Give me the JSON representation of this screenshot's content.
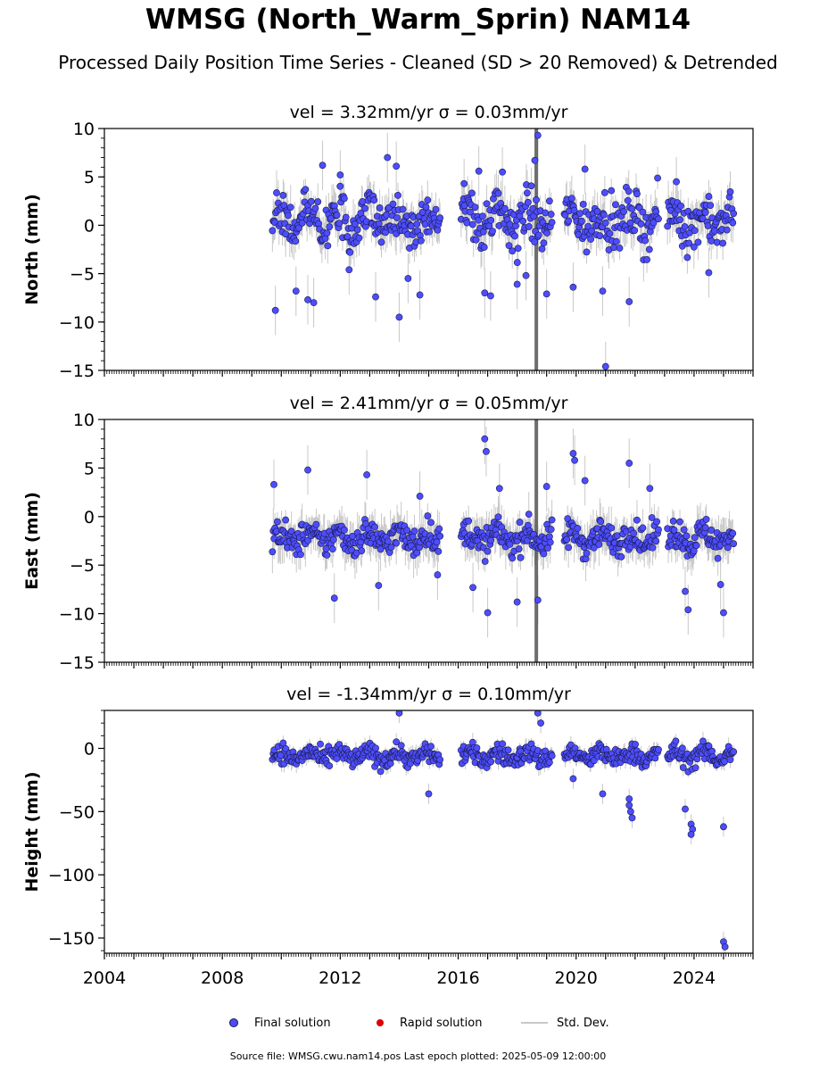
{
  "figure": {
    "title": "WMSG (North_Warm_Sprin) NAM14",
    "subtitle": "Processed Daily Position Time Series - Cleaned (SD > 20 Removed) & Detrended",
    "source": "Source file: WMSG.cwu.nam14.pos  Last epoch plotted: 2025-05-09 12:00:00"
  },
  "legend": {
    "final": "Final solution",
    "rapid": "Rapid solution",
    "std": "Std. Dev."
  },
  "colors": {
    "final": "#4d4dff",
    "rapid": "#dd0000",
    "std": "#c8c8c8",
    "dense_std": "#555555",
    "marker_edge": "#1a1a4a"
  },
  "chart_data": [
    {
      "type": "scatter",
      "title": "vel = 3.32mm/yr   σ = 0.03mm/yr",
      "ylabel": "North (mm)",
      "xlabel": "",
      "xlim": [
        2004.0,
        2026.0
      ],
      "ylim": [
        -15,
        10
      ],
      "yticks": [
        10,
        5,
        0,
        -5,
        -10,
        -15
      ],
      "xtick_labels_shown": false,
      "segments": [
        {
          "start": 2009.7,
          "end": 2015.4
        },
        {
          "start": 2016.1,
          "end": 2019.2
        },
        {
          "start": 2019.6,
          "end": 2022.8
        },
        {
          "start": 2023.1,
          "end": 2025.35
        }
      ],
      "series": [
        {
          "name": "Final solution",
          "center_y": 0.5,
          "spread": 2.3,
          "sd": 1.6
        },
        {
          "name": "Rapid solution",
          "points": []
        }
      ],
      "outliers": [
        {
          "x": 2009.8,
          "y": -8.8
        },
        {
          "x": 2010.5,
          "y": -6.8
        },
        {
          "x": 2010.9,
          "y": -7.7
        },
        {
          "x": 2011.1,
          "y": -8.0
        },
        {
          "x": 2011.4,
          "y": 6.2
        },
        {
          "x": 2012.0,
          "y": 5.2
        },
        {
          "x": 2012.3,
          "y": -4.6
        },
        {
          "x": 2013.2,
          "y": -7.4
        },
        {
          "x": 2013.6,
          "y": 7.0
        },
        {
          "x": 2013.9,
          "y": 6.1
        },
        {
          "x": 2014.0,
          "y": -9.5
        },
        {
          "x": 2014.3,
          "y": -5.5
        },
        {
          "x": 2014.7,
          "y": -7.2
        },
        {
          "x": 2016.2,
          "y": 4.3
        },
        {
          "x": 2016.7,
          "y": 5.6
        },
        {
          "x": 2016.9,
          "y": -7.0
        },
        {
          "x": 2017.1,
          "y": -7.3
        },
        {
          "x": 2017.5,
          "y": 5.5
        },
        {
          "x": 2018.0,
          "y": -6.1
        },
        {
          "x": 2018.3,
          "y": -5.2
        },
        {
          "x": 2018.6,
          "y": 6.7
        },
        {
          "x": 2018.7,
          "y": 9.3
        },
        {
          "x": 2019.0,
          "y": -7.1
        },
        {
          "x": 2019.9,
          "y": -6.4
        },
        {
          "x": 2020.3,
          "y": 5.8
        },
        {
          "x": 2020.9,
          "y": -6.8
        },
        {
          "x": 2021.0,
          "y": -14.6
        },
        {
          "x": 2021.8,
          "y": -7.9
        },
        {
          "x": 2023.4,
          "y": 4.5
        },
        {
          "x": 2024.5,
          "y": -4.9
        }
      ],
      "sd_spike": {
        "x": 2018.65,
        "low": -15,
        "high": 10
      }
    },
    {
      "type": "scatter",
      "title": "vel = 2.41mm/yr   σ = 0.05mm/yr",
      "ylabel": "East (mm)",
      "xlabel": "",
      "xlim": [
        2004.0,
        2026.0
      ],
      "ylim": [
        -15,
        10
      ],
      "yticks": [
        10,
        5,
        0,
        -5,
        -10,
        -15
      ],
      "xtick_labels_shown": false,
      "segments": [
        {
          "start": 2009.7,
          "end": 2015.4
        },
        {
          "start": 2016.1,
          "end": 2019.2
        },
        {
          "start": 2019.6,
          "end": 2022.8
        },
        {
          "start": 2023.1,
          "end": 2025.35
        }
      ],
      "series": [
        {
          "name": "Final solution",
          "center_y": -2.2,
          "spread": 1.4,
          "sd": 1.6
        },
        {
          "name": "Rapid solution",
          "points": []
        }
      ],
      "outliers": [
        {
          "x": 2009.75,
          "y": 3.3
        },
        {
          "x": 2010.9,
          "y": 4.8
        },
        {
          "x": 2011.8,
          "y": -8.4
        },
        {
          "x": 2012.9,
          "y": 4.3
        },
        {
          "x": 2013.3,
          "y": -7.1
        },
        {
          "x": 2014.7,
          "y": 2.1
        },
        {
          "x": 2015.3,
          "y": -6.0
        },
        {
          "x": 2016.5,
          "y": -7.3
        },
        {
          "x": 2016.9,
          "y": 8.0
        },
        {
          "x": 2016.95,
          "y": 6.7
        },
        {
          "x": 2017.0,
          "y": -9.9
        },
        {
          "x": 2017.4,
          "y": 2.9
        },
        {
          "x": 2018.0,
          "y": -8.8
        },
        {
          "x": 2018.7,
          "y": -8.6
        },
        {
          "x": 2019.0,
          "y": 3.1
        },
        {
          "x": 2019.9,
          "y": 6.5
        },
        {
          "x": 2019.95,
          "y": 5.8
        },
        {
          "x": 2020.3,
          "y": 3.7
        },
        {
          "x": 2021.8,
          "y": 5.5
        },
        {
          "x": 2022.5,
          "y": 2.9
        },
        {
          "x": 2023.7,
          "y": -7.7
        },
        {
          "x": 2023.8,
          "y": -9.6
        },
        {
          "x": 2025.0,
          "y": -9.9
        },
        {
          "x": 2024.9,
          "y": -7.0
        }
      ],
      "sd_spike": {
        "x": 2018.65,
        "low": -15,
        "high": 10
      }
    },
    {
      "type": "scatter",
      "title": "vel = -1.34mm/yr   σ = 0.10mm/yr",
      "ylabel": "Height (mm)",
      "xlabel": "",
      "xlim": [
        2004.0,
        2026.0
      ],
      "ylim": [
        -162,
        30
      ],
      "yticks": [
        0,
        -50,
        -100,
        -150
      ],
      "xticks": [
        2004,
        2008,
        2012,
        2016,
        2020,
        2024
      ],
      "xtick_labels_shown": true,
      "segments": [
        {
          "start": 2009.7,
          "end": 2015.4
        },
        {
          "start": 2016.1,
          "end": 2019.2
        },
        {
          "start": 2019.6,
          "end": 2022.8
        },
        {
          "start": 2023.1,
          "end": 2025.35
        }
      ],
      "series": [
        {
          "name": "Final solution",
          "center_y": -6,
          "spread": 7,
          "sd": 5
        },
        {
          "name": "Rapid solution",
          "points": []
        }
      ],
      "outliers": [
        {
          "x": 2014.0,
          "y": 28
        },
        {
          "x": 2015.0,
          "y": -36
        },
        {
          "x": 2018.7,
          "y": 28
        },
        {
          "x": 2018.8,
          "y": 20
        },
        {
          "x": 2019.9,
          "y": -24
        },
        {
          "x": 2020.9,
          "y": -36
        },
        {
          "x": 2021.8,
          "y": -40
        },
        {
          "x": 2021.8,
          "y": -45
        },
        {
          "x": 2021.85,
          "y": -50
        },
        {
          "x": 2021.9,
          "y": -55
        },
        {
          "x": 2023.7,
          "y": -48
        },
        {
          "x": 2023.9,
          "y": -60
        },
        {
          "x": 2023.95,
          "y": -64
        },
        {
          "x": 2023.9,
          "y": -68
        },
        {
          "x": 2025.0,
          "y": -62
        },
        {
          "x": 2025.0,
          "y": -153
        },
        {
          "x": 2025.05,
          "y": -157
        }
      ]
    }
  ]
}
